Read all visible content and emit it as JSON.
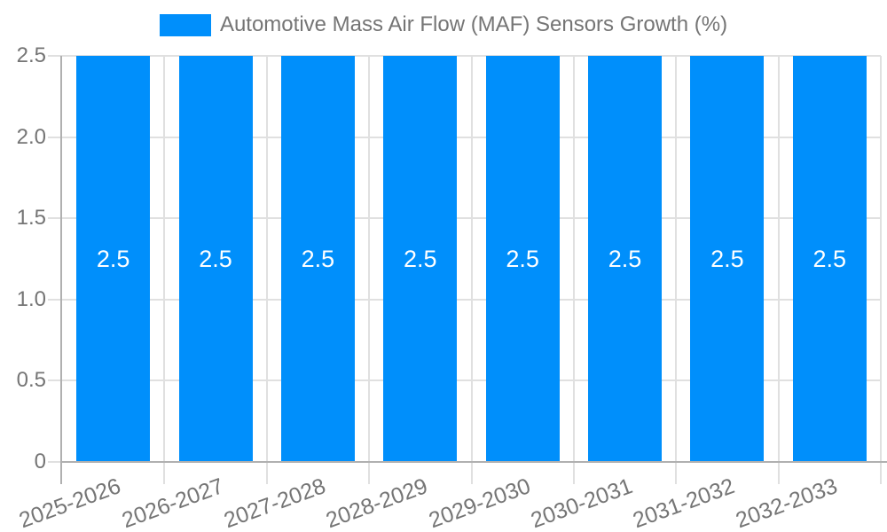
{
  "chart_data": {
    "type": "bar",
    "legend_label": "Automotive Mass Air Flow (MAF) Sensors Growth (%)",
    "legend_position": "top",
    "categories": [
      "2025-2026",
      "2026-2027",
      "2027-2028",
      "2028-2029",
      "2029-2030",
      "2030-2031",
      "2031-2032",
      "2032-2033"
    ],
    "values": [
      2.5,
      2.5,
      2.5,
      2.5,
      2.5,
      2.5,
      2.5,
      2.5
    ],
    "bar_value_labels": [
      "2.5",
      "2.5",
      "2.5",
      "2.5",
      "2.5",
      "2.5",
      "2.5",
      "2.5"
    ],
    "ylim": [
      0,
      2.5
    ],
    "yticks": [
      0,
      0.5,
      1.0,
      1.5,
      2.0,
      2.5
    ],
    "ytick_labels": [
      "0",
      "0.5",
      "1.0",
      "1.5",
      "2.0",
      "2.5"
    ],
    "xlabel": "",
    "ylabel": "",
    "grid": true,
    "colors": {
      "bar": "#008FFB",
      "bar_label": "#FFFFFF",
      "axis_text": "#757575",
      "gridline": "#E0E0E0",
      "axis_line": "#B0B0B0"
    }
  }
}
